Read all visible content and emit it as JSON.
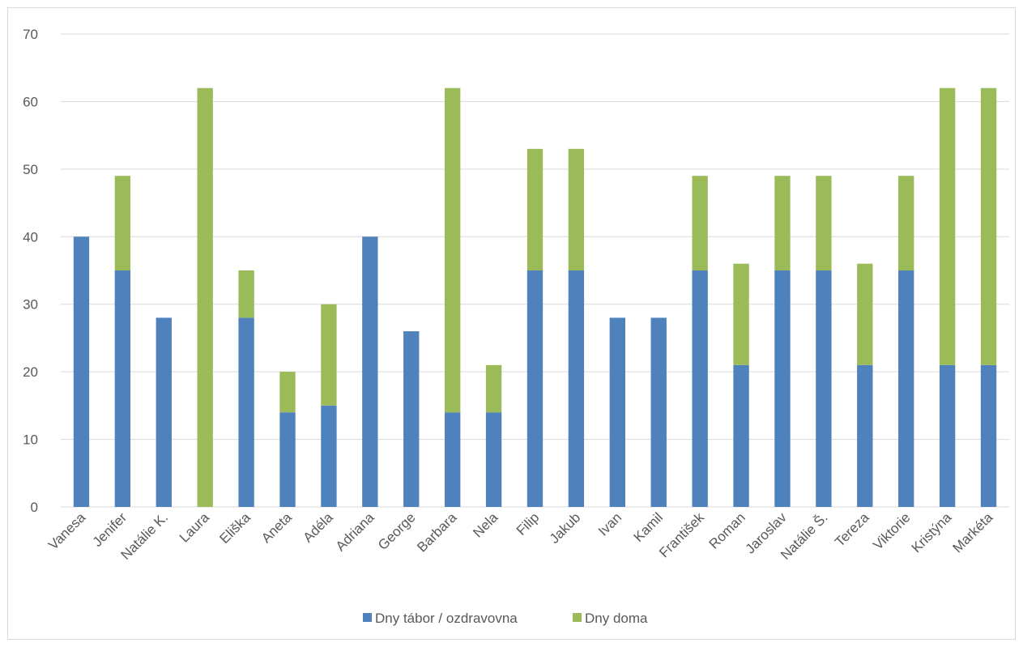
{
  "chart_data": {
    "type": "bar",
    "stacked": true,
    "title": "",
    "xlabel": "",
    "ylabel": "",
    "ylim": [
      0,
      70
    ],
    "yticks": [
      0,
      10,
      20,
      30,
      40,
      50,
      60,
      70
    ],
    "grid": true,
    "legend_position": "bottom",
    "categories": [
      "Vanesa",
      "Jenifer",
      "Natálie K.",
      "Laura",
      "Eliška",
      "Aneta",
      "Adéla",
      "Adriana",
      "George",
      "Barbara",
      "Nela",
      "Filip",
      "Jakub",
      "Ivan",
      "Kamil",
      "František",
      "Roman",
      "Jaroslav",
      "Natálie Š.",
      "Tereza",
      "Viktorie",
      "Kristýna",
      "Markéta"
    ],
    "series": [
      {
        "name": "Dny tábor / ozdravovna",
        "color": "#4f81bd",
        "values": [
          40,
          35,
          28,
          0,
          28,
          14,
          15,
          40,
          26,
          14,
          14,
          35,
          35,
          28,
          28,
          35,
          21,
          35,
          35,
          21,
          35,
          21,
          21
        ]
      },
      {
        "name": "Dny doma",
        "color": "#9bbb59",
        "values": [
          0,
          14,
          0,
          62,
          7,
          6,
          15,
          0,
          0,
          48,
          7,
          18,
          18,
          0,
          0,
          14,
          15,
          14,
          14,
          15,
          14,
          41,
          41
        ]
      }
    ]
  }
}
